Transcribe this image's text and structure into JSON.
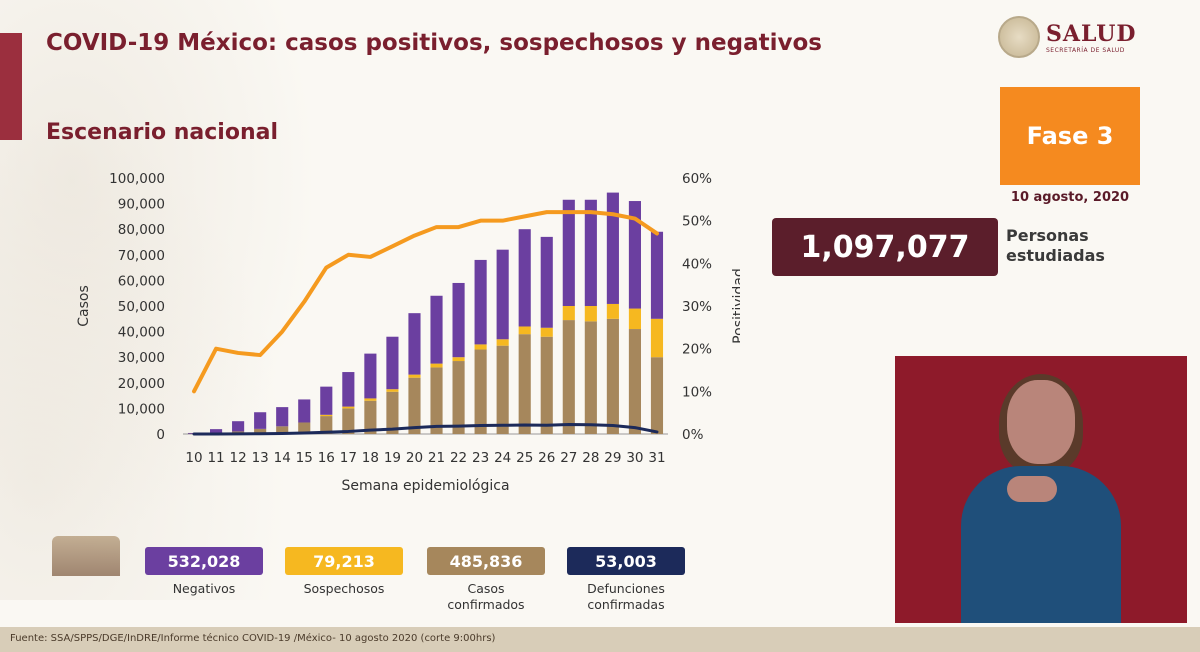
{
  "header": {
    "title": "COVID-19 México: casos positivos, sospechosos y negativos",
    "subtitle": "Escenario nacional"
  },
  "logo": {
    "name": "SALUD",
    "sub": "SECRETARÍA DE SALUD"
  },
  "phase": {
    "label": "Fase 3",
    "date": "10 agosto, 2020"
  },
  "studied": {
    "value": "1,097,077",
    "label": "Personas estudiadas"
  },
  "legend": [
    {
      "value": "532,028",
      "label": "Negativos",
      "color": "#6b3fa0"
    },
    {
      "value": "79,213",
      "label": "Sospechosos",
      "color": "#f6b820"
    },
    {
      "value": "485,836",
      "label": "Casos confirmados",
      "color": "#a6875c"
    },
    {
      "value": "53,003",
      "label": "Defunciones confirmadas",
      "color": "#1c2a5a"
    }
  ],
  "footer": "Fuente: SSA/SPPS/DGE/InDRE/Informe técnico COVID-19 /México- 10 agosto 2020 (corte 9:00hrs)",
  "chart_data": {
    "type": "bar",
    "title": "",
    "xlabel": "Semana epidemiológica",
    "ylabel": "Casos",
    "y2label": "Positividad",
    "ylim": [
      0,
      100000
    ],
    "y2lim": [
      0,
      60
    ],
    "yticks": [
      "0",
      "10,000",
      "20,000",
      "30,000",
      "40,000",
      "50,000",
      "60,000",
      "70,000",
      "80,000",
      "90,000",
      "100,000"
    ],
    "y2ticks": [
      "0%",
      "10%",
      "20%",
      "30%",
      "40%",
      "50%",
      "60%"
    ],
    "categories": [
      "10",
      "11",
      "12",
      "13",
      "14",
      "15",
      "16",
      "17",
      "18",
      "19",
      "20",
      "21",
      "22",
      "23",
      "24",
      "25",
      "26",
      "27",
      "28",
      "29",
      "30",
      "31"
    ],
    "series": [
      {
        "name": "Casos confirmados",
        "kind": "stacked-bar",
        "color": "#a6875c",
        "values": [
          100,
          400,
          1000,
          2000,
          3000,
          4500,
          7000,
          10000,
          13000,
          16500,
          22000,
          26000,
          28500,
          33000,
          34500,
          39000,
          38000,
          44500,
          44000,
          45000,
          41000,
          30000
        ]
      },
      {
        "name": "Sospechosos",
        "kind": "stacked-bar",
        "color": "#f6b820",
        "values": [
          0,
          0,
          0,
          0,
          0,
          0,
          500,
          700,
          900,
          1000,
          1200,
          1500,
          1500,
          2000,
          2500,
          3000,
          3500,
          5500,
          6000,
          5800,
          8000,
          15000
        ]
      },
      {
        "name": "Negativos",
        "kind": "stacked-bar",
        "color": "#6b3fa0",
        "values": [
          300,
          1500,
          4000,
          6500,
          7500,
          9000,
          11000,
          13500,
          17500,
          20500,
          24000,
          26500,
          29000,
          33000,
          35000,
          38000,
          35500,
          41500,
          41500,
          43500,
          42000,
          34000
        ]
      },
      {
        "name": "Defunciones confirmadas",
        "kind": "line",
        "axis": "left",
        "color": "#1c2a5a",
        "values": [
          0,
          20,
          60,
          100,
          200,
          400,
          700,
          1000,
          1500,
          1900,
          2500,
          3000,
          3100,
          3300,
          3400,
          3500,
          3400,
          3700,
          3600,
          3300,
          2500,
          800
        ]
      },
      {
        "name": "Positividad",
        "kind": "line",
        "axis": "right",
        "color": "#f59a1f",
        "values": [
          10,
          20,
          19,
          18.5,
          24,
          31,
          39,
          42,
          41.5,
          44,
          46.5,
          48.5,
          48.5,
          50,
          50,
          51,
          52,
          52,
          52,
          51.5,
          50.5,
          47
        ]
      }
    ],
    "grid": false
  }
}
